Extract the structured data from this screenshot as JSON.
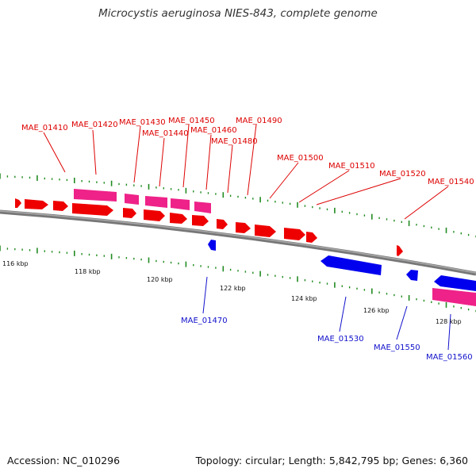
{
  "title": "Microcystis aeruginosa NIES-843, complete genome",
  "footer": {
    "accession": "Accession: NC_010296",
    "topology": "Topology: circular; Length: 5,842,795 bp; Genes: 6,360"
  },
  "colors": {
    "forward": "#ee0000",
    "forward_alt": "#ee2288",
    "reverse": "#0000ee",
    "backbone": "#777777",
    "ticks": "#228b22",
    "label_red": "#dd0000",
    "label_blue": "#1111cc"
  },
  "kbp_ticks": [
    "116 kbp",
    "118 kbp",
    "120 kbp",
    "122 kbp",
    "124 kbp",
    "126 kbp",
    "128 kbp"
  ],
  "forward_labels": [
    "MAE_01410",
    "MAE_01420",
    "MAE_01430",
    "MAE_01440",
    "MAE_01450",
    "MAE_01460",
    "MAE_01480",
    "MAE_01490",
    "MAE_01500",
    "MAE_01510",
    "MAE_01520",
    "MAE_01540"
  ],
  "reverse_labels": [
    "MAE_01470",
    "MAE_01530",
    "MAE_01550",
    "MAE_01560"
  ]
}
